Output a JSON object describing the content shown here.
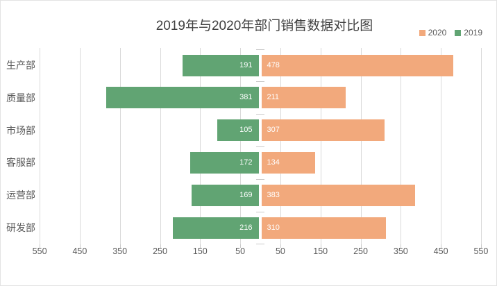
{
  "chart_data": {
    "type": "bar",
    "variant": "diverging-horizontal",
    "title": "2019年与2020年部门销售数据对比图",
    "categories": [
      "生产部",
      "质量部",
      "市场部",
      "客服部",
      "运营部",
      "研发部"
    ],
    "series": [
      {
        "name": "2019",
        "side": "left",
        "color": "#61A473",
        "values": [
          191,
          381,
          105,
          172,
          169,
          216
        ]
      },
      {
        "name": "2020",
        "side": "right",
        "color": "#F2A97C",
        "values": [
          478,
          211,
          307,
          134,
          383,
          310
        ]
      }
    ],
    "axis_ticks": [
      50,
      150,
      250,
      350,
      450,
      550
    ],
    "xlim": [
      -600,
      600
    ],
    "grid": true,
    "legend_position": "top-right"
  },
  "legend": {
    "items": [
      {
        "label": "2020",
        "color": "#F2A97C"
      },
      {
        "label": "2019",
        "color": "#61A473"
      }
    ]
  },
  "colors": {
    "background": "#FFFFFF",
    "gridline": "#D9D9D9",
    "tick": "#C9C9C9",
    "axis_text": "#595959",
    "title_text": "#404040",
    "bar_label": "#FFFFFF"
  }
}
